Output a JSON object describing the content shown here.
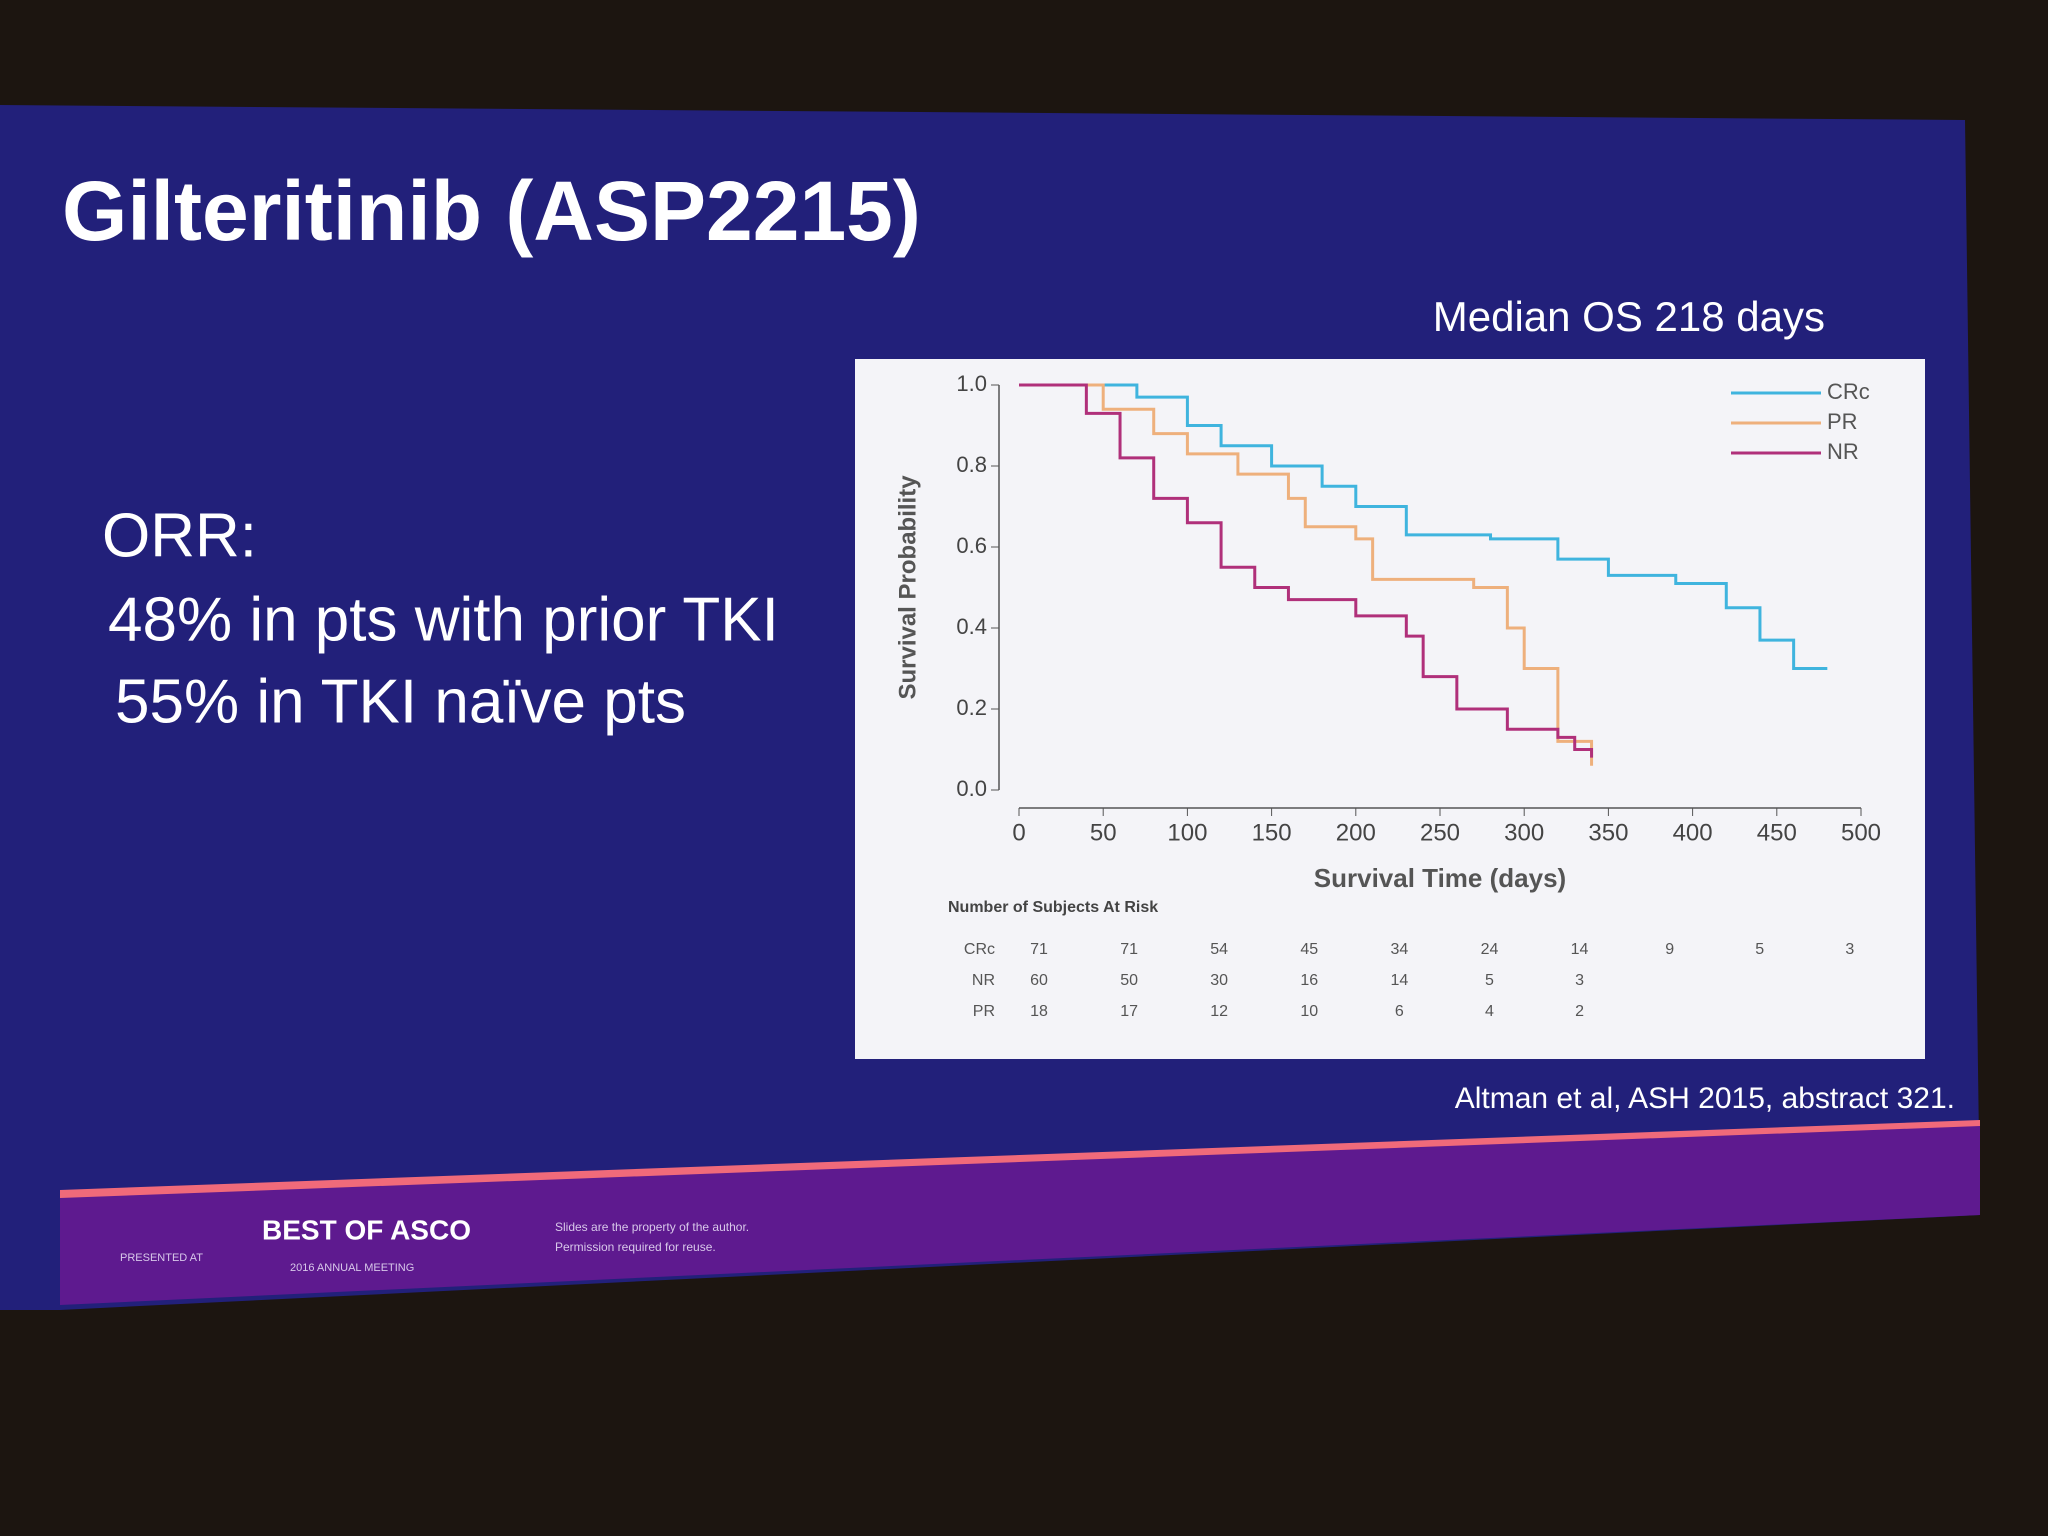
{
  "slide": {
    "title": "Gilteritinib (ASP2215)",
    "bullets": [
      "ORR:",
      "48% in pts with prior TKI",
      "55% in TKI naïve pts"
    ],
    "citation": "Altman et al, ASH 2015, abstract 321.",
    "footer": {
      "presented_at": "PRESENTED AT",
      "brand": "BEST OF ASCO",
      "meeting": "2016 ANNUAL MEETING",
      "note_1": "Slides are the property of the author.",
      "note_2": "Permission required for reuse."
    }
  },
  "chart_data": {
    "type": "step",
    "title": "Median OS 218 days",
    "x_label": "Survival Time (days)",
    "y_label": "Survival Probability",
    "xlim": [
      0,
      500
    ],
    "xticks": [
      0,
      50,
      100,
      150,
      200,
      250,
      300,
      350,
      400,
      450,
      500
    ],
    "ylim": [
      0,
      1
    ],
    "yticks": [
      {
        "value": 0,
        "label": "0.0"
      },
      0.2,
      0.4,
      0.6,
      0.8,
      {
        "value": 1,
        "label": "1.0"
      }
    ],
    "grid": false,
    "legend": "upper right",
    "series": [
      {
        "name": "CRc",
        "color": "#3fb4de",
        "x": [
          0,
          55,
          70,
          100,
          120,
          150,
          180,
          200,
          230,
          280,
          320,
          350,
          390,
          420,
          440,
          460,
          480
        ],
        "values": [
          1,
          1,
          0.97,
          0.9,
          0.85,
          0.8,
          0.75,
          0.7,
          0.63,
          0.62,
          0.57,
          0.53,
          0.51,
          0.45,
          0.37,
          0.3,
          0.3
        ]
      },
      {
        "name": "PR",
        "color": "#eeb07c",
        "x": [
          0,
          40,
          50,
          80,
          100,
          130,
          160,
          170,
          200,
          210,
          270,
          290,
          300,
          320,
          340
        ],
        "values": [
          1,
          1,
          0.94,
          0.88,
          0.83,
          0.78,
          0.72,
          0.65,
          0.62,
          0.52,
          0.5,
          0.4,
          0.3,
          0.12,
          0.06
        ]
      },
      {
        "name": "NR",
        "color": "#b0307a",
        "x": [
          0,
          20,
          40,
          60,
          80,
          100,
          120,
          140,
          160,
          200,
          230,
          240,
          260,
          290,
          320,
          330,
          340
        ],
        "values": [
          1,
          1,
          0.93,
          0.82,
          0.72,
          0.66,
          0.55,
          0.5,
          0.47,
          0.43,
          0.38,
          0.28,
          0.2,
          0.15,
          0.13,
          0.1,
          0.08
        ]
      }
    ],
    "risk_table": {
      "title": "Number of Subjects At Risk",
      "rows": [
        {
          "name": "CRc",
          "values": [
            71,
            71,
            54,
            45,
            34,
            24,
            14,
            9,
            5,
            3
          ]
        },
        {
          "name": "NR",
          "values": [
            60,
            50,
            30,
            16,
            14,
            5,
            3
          ]
        },
        {
          "name": "PR",
          "values": [
            18,
            17,
            12,
            10,
            6,
            4,
            2
          ]
        }
      ]
    }
  }
}
